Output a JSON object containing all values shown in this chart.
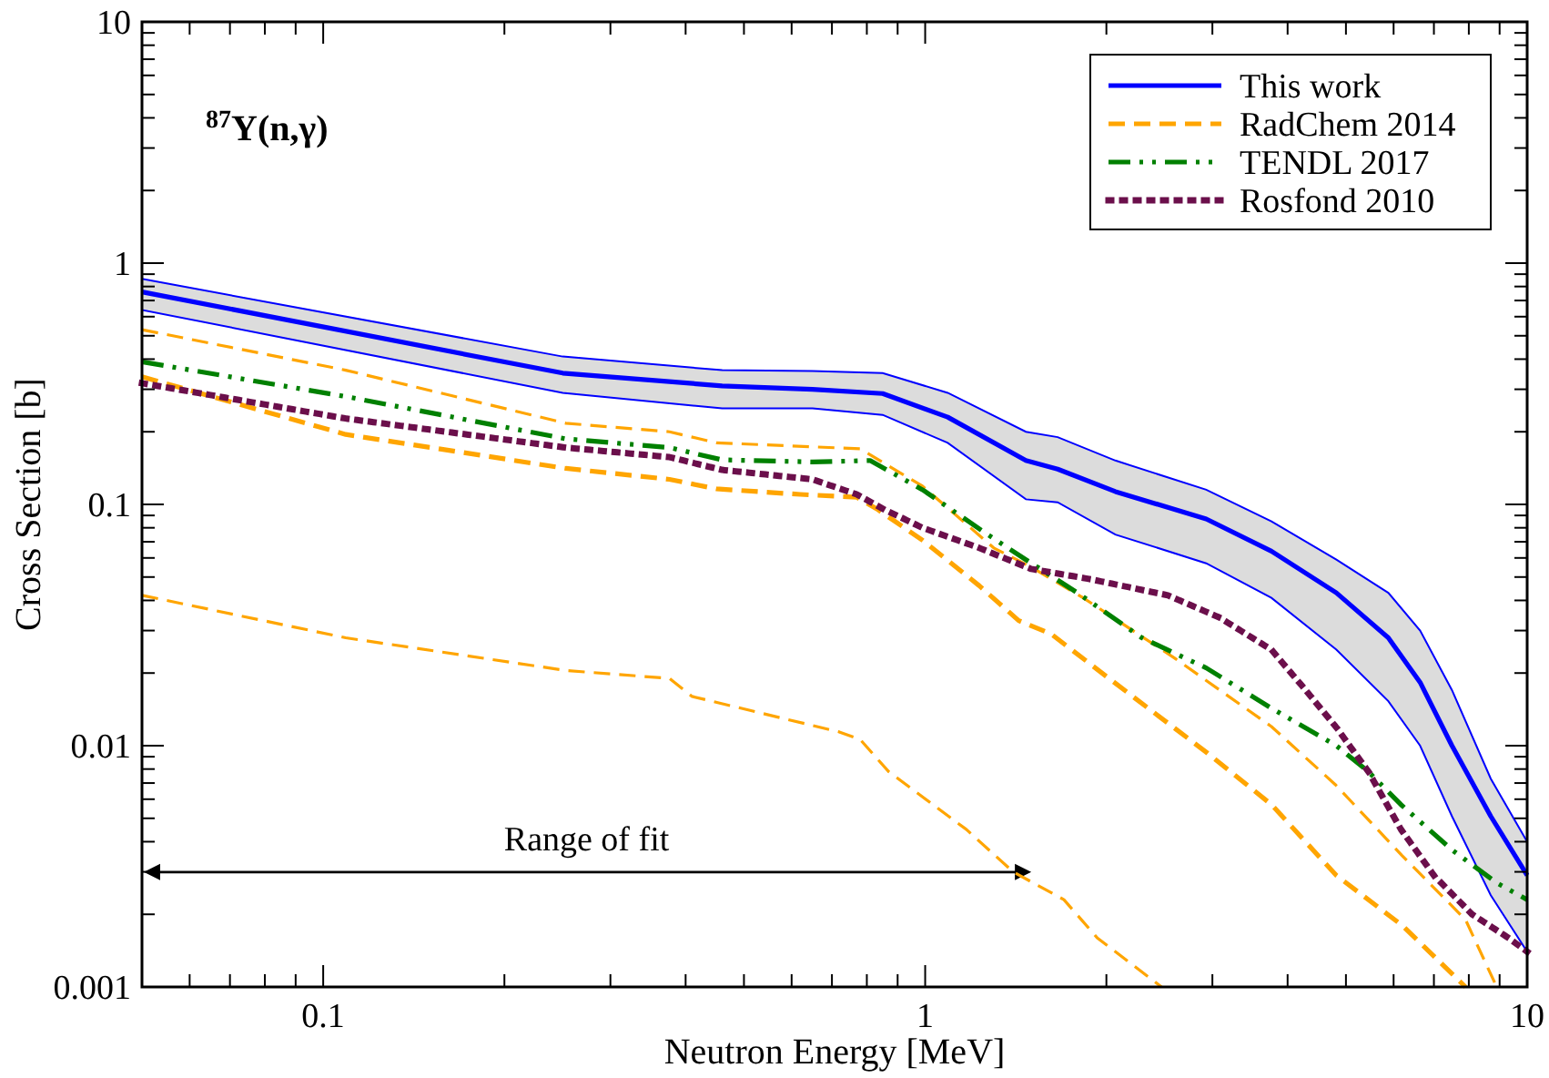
{
  "chart_data": {
    "type": "line",
    "title": "$^{87}$Y(n,γ)",
    "xlabel": "Neutron Energy [MeV]",
    "ylabel": "Cross Section [b]",
    "log": "xy",
    "legend": "top right",
    "grid": false,
    "xlim": [
      0.05,
      10
    ],
    "ylim": [
      0.001,
      10
    ],
    "xticks": [
      {
        "value": 0.05,
        "label": null
      },
      {
        "value": 0.06,
        "label": null
      },
      {
        "value": 0.07,
        "label": null
      },
      {
        "value": 0.08,
        "label": null
      },
      {
        "value": 0.09,
        "label": null
      },
      0.1,
      {
        "value": 0.2,
        "label": null
      },
      {
        "value": 0.3,
        "label": null
      },
      {
        "value": 0.4,
        "label": null
      },
      {
        "value": 0.5,
        "label": null
      },
      {
        "value": 0.6,
        "label": null
      },
      {
        "value": 0.7,
        "label": null
      },
      {
        "value": 0.8,
        "label": null
      },
      {
        "value": 0.9,
        "label": null
      },
      1,
      {
        "value": 2,
        "label": null
      },
      {
        "value": 3,
        "label": null
      },
      {
        "value": 4,
        "label": null
      },
      {
        "value": 5,
        "label": null
      },
      {
        "value": 6,
        "label": null
      },
      {
        "value": 7,
        "label": null
      },
      {
        "value": 8,
        "label": null
      },
      {
        "value": 9,
        "label": null
      },
      10
    ],
    "yticks": [
      0.001,
      {
        "value": 0.002,
        "label": null
      },
      {
        "value": 0.003,
        "label": null
      },
      {
        "value": 0.004,
        "label": null
      },
      {
        "value": 0.005,
        "label": null
      },
      {
        "value": 0.006,
        "label": null
      },
      {
        "value": 0.007,
        "label": null
      },
      {
        "value": 0.008,
        "label": null
      },
      {
        "value": 0.009,
        "label": null
      },
      0.01,
      {
        "value": 0.02,
        "label": null
      },
      {
        "value": 0.03,
        "label": null
      },
      {
        "value": 0.04,
        "label": null
      },
      {
        "value": 0.05,
        "label": null
      },
      {
        "value": 0.06,
        "label": null
      },
      {
        "value": 0.07,
        "label": null
      },
      {
        "value": 0.08,
        "label": null
      },
      {
        "value": 0.09,
        "label": null
      },
      0.1,
      {
        "value": 0.2,
        "label": null
      },
      {
        "value": 0.3,
        "label": null
      },
      {
        "value": 0.4,
        "label": null
      },
      {
        "value": 0.5,
        "label": null
      },
      {
        "value": 0.6,
        "label": null
      },
      {
        "value": 0.7,
        "label": null
      },
      {
        "value": 0.8,
        "label": null
      },
      {
        "value": 0.9,
        "label": null
      },
      1,
      {
        "value": 2,
        "label": null
      },
      {
        "value": 3,
        "label": null
      },
      {
        "value": 4,
        "label": null
      },
      {
        "value": 5,
        "label": null
      },
      {
        "value": 6,
        "label": null
      },
      {
        "value": 7,
        "label": null
      },
      {
        "value": 8,
        "label": null
      },
      {
        "value": 9,
        "label": null
      },
      10
    ],
    "annotations": [
      "Range of fit"
    ],
    "series": [
      {
        "name": "This work",
        "color": "#0000ff",
        "line_style": "solid",
        "x": [
          0.05,
          0.25,
          0.46,
          0.65,
          0.85,
          1.09,
          1.47,
          1.66,
          2.07,
          2.93,
          3.76,
          4.82,
          5.88,
          6.64,
          7.5,
          8.7,
          10
        ],
        "values": [
          0.76,
          0.35,
          0.31,
          0.3,
          0.288,
          0.23,
          0.152,
          0.14,
          0.113,
          0.087,
          0.064,
          0.043,
          0.028,
          0.0183,
          0.01,
          0.0051,
          0.0029
        ],
        "upper": [
          0.86,
          0.41,
          0.36,
          0.357,
          0.35,
          0.29,
          0.2,
          0.19,
          0.152,
          0.115,
          0.085,
          0.059,
          0.043,
          0.03,
          0.017,
          0.0073,
          0.004
        ],
        "lower": [
          0.64,
          0.29,
          0.25,
          0.25,
          0.235,
          0.18,
          0.105,
          0.102,
          0.075,
          0.057,
          0.041,
          0.025,
          0.0153,
          0.01,
          0.0051,
          0.0024,
          0.0014
        ]
      },
      {
        "name": "RadChem 2014",
        "color": "#ffa500",
        "line_style": "dashed",
        "x": [
          0.05,
          0.109,
          0.253,
          0.376,
          0.45,
          0.62,
          0.77,
          0.83,
          0.99,
          1.23,
          1.43,
          1.62,
          2.02,
          2.93,
          3.76,
          4.82,
          6.2,
          7.9
        ],
        "values": [
          0.338,
          0.195,
          0.141,
          0.127,
          0.116,
          0.11,
          0.107,
          0.096,
          0.071,
          0.046,
          0.033,
          0.029,
          0.019,
          0.0094,
          0.0057,
          0.0029,
          0.0018,
          0.001
        ]
      },
      {
        "color": "#ffa500",
        "line_style": "dashed",
        "x": [
          0.05,
          0.109,
          0.253,
          0.376,
          0.45,
          0.78,
          0.99,
          1.3,
          1.5,
          1.83,
          2.6,
          3.76,
          4.8,
          6.2,
          7.9,
          8.9
        ],
        "values": [
          0.53,
          0.36,
          0.217,
          0.2,
          0.18,
          0.17,
          0.119,
          0.066,
          0.055,
          0.041,
          0.023,
          0.012,
          0.0069,
          0.0035,
          0.0019,
          0.001
        ]
      },
      {
        "color": "#ffa500",
        "line_style": "dashed",
        "x": [
          0.05,
          0.109,
          0.253,
          0.376,
          0.41,
          0.72,
          0.78,
          0.87,
          1.17,
          1.4,
          1.7,
          1.93,
          2.47
        ],
        "values": [
          0.042,
          0.028,
          0.0205,
          0.019,
          0.016,
          0.0114,
          0.0106,
          0.0078,
          0.0045,
          0.003,
          0.0023,
          0.0016,
          0.001
        ]
      },
      {
        "name": "TENDL 2017",
        "color": "#008000",
        "line_style": "dashdotdot",
        "x": [
          0.05,
          0.109,
          0.253,
          0.376,
          0.46,
          0.65,
          0.81,
          0.99,
          1.27,
          1.47,
          1.79,
          2.29,
          2.93,
          3.76,
          4.82,
          5.45,
          6.17,
          7.5,
          8.9,
          10
        ],
        "values": [
          0.39,
          0.28,
          0.187,
          0.172,
          0.153,
          0.15,
          0.152,
          0.115,
          0.075,
          0.059,
          0.043,
          0.028,
          0.021,
          0.0143,
          0.01,
          0.0078,
          0.0057,
          0.0037,
          0.0027,
          0.0023
        ]
      },
      {
        "name": "Rosfond 2010",
        "color": "#6b0f4b",
        "line_style": "dotted",
        "x": [
          0.05,
          0.109,
          0.253,
          0.376,
          0.46,
          0.65,
          0.77,
          0.85,
          0.99,
          1.23,
          1.5,
          1.88,
          2.53,
          3.08,
          3.76,
          4.26,
          4.82,
          5.45,
          6.17,
          7.0,
          8.1,
          9.3,
          10
        ],
        "values": [
          0.318,
          0.227,
          0.172,
          0.157,
          0.139,
          0.127,
          0.11,
          0.096,
          0.08,
          0.066,
          0.054,
          0.049,
          0.042,
          0.034,
          0.025,
          0.0173,
          0.0119,
          0.0078,
          0.0045,
          0.0029,
          0.002,
          0.0016,
          0.0014
        ]
      }
    ]
  }
}
